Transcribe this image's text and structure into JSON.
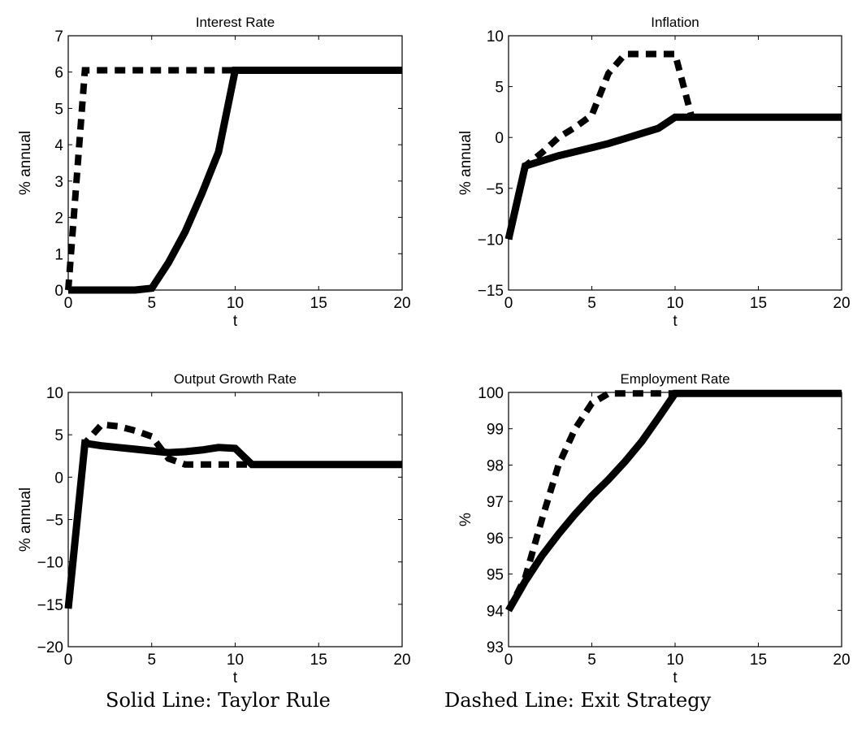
{
  "chart_data": [
    {
      "type": "line",
      "title": "Interest Rate",
      "xlabel": "t",
      "ylabel": "% annual",
      "xlim": [
        0,
        20
      ],
      "ylim": [
        0,
        7
      ],
      "xticks": [
        0,
        5,
        10,
        15,
        20
      ],
      "yticks": [
        0,
        1,
        2,
        3,
        4,
        5,
        6,
        7
      ],
      "series": [
        {
          "style": "solid",
          "x": [
            0,
            1,
            2,
            3,
            4,
            5,
            6,
            7,
            8,
            9,
            10,
            11,
            12,
            13,
            14,
            15,
            16,
            17,
            18,
            19,
            20
          ],
          "y": [
            0,
            0,
            0,
            0,
            0,
            0.05,
            0.75,
            1.6,
            2.65,
            3.8,
            6.05,
            6.05,
            6.05,
            6.05,
            6.05,
            6.05,
            6.05,
            6.05,
            6.05,
            6.05,
            6.05
          ]
        },
        {
          "style": "dashed",
          "x": [
            0,
            1,
            2,
            3,
            4,
            5,
            6,
            7,
            8,
            9,
            10
          ],
          "y": [
            0,
            6.05,
            6.05,
            6.05,
            6.05,
            6.05,
            6.05,
            6.05,
            6.05,
            6.05,
            6.05
          ]
        }
      ]
    },
    {
      "type": "line",
      "title": "Inflation",
      "xlabel": "t",
      "ylabel": "% annual",
      "xlim": [
        0,
        20
      ],
      "ylim": [
        -15,
        10
      ],
      "xticks": [
        0,
        5,
        10,
        15,
        20
      ],
      "yticks": [
        -15,
        -10,
        -5,
        0,
        5,
        10
      ],
      "series": [
        {
          "style": "solid",
          "x": [
            0,
            1,
            2,
            3,
            4,
            5,
            6,
            7,
            8,
            9,
            10,
            11,
            12,
            13,
            14,
            15,
            16,
            17,
            18,
            19,
            20
          ],
          "y": [
            -10,
            -2.8,
            -2.3,
            -1.8,
            -1.4,
            -1.0,
            -0.6,
            -0.1,
            0.4,
            0.9,
            2.0,
            2.0,
            2.0,
            2.0,
            2.0,
            2.0,
            2.0,
            2.0,
            2.0,
            2.0,
            2.0
          ]
        },
        {
          "style": "dashed",
          "x": [
            0,
            1,
            2,
            3,
            4,
            5,
            6,
            7,
            8,
            9,
            10,
            11
          ],
          "y": [
            -10,
            -2.8,
            -1.5,
            0.0,
            1.0,
            2.2,
            6.3,
            8.2,
            8.2,
            8.2,
            8.2,
            2.0
          ]
        }
      ]
    },
    {
      "type": "line",
      "title": "Output Growth Rate",
      "xlabel": "t",
      "ylabel": "% annual",
      "xlim": [
        0,
        20
      ],
      "ylim": [
        -20,
        10
      ],
      "xticks": [
        0,
        5,
        10,
        15,
        20
      ],
      "yticks": [
        -20,
        -15,
        -10,
        -5,
        0,
        5,
        10
      ],
      "series": [
        {
          "style": "solid",
          "x": [
            0,
            1,
            2,
            3,
            4,
            5,
            6,
            7,
            8,
            9,
            10,
            11,
            12,
            13,
            14,
            15,
            16,
            17,
            18,
            19,
            20
          ],
          "y": [
            -15.5,
            4.0,
            3.7,
            3.5,
            3.3,
            3.1,
            2.9,
            3.0,
            3.2,
            3.5,
            3.4,
            1.5,
            1.5,
            1.5,
            1.5,
            1.5,
            1.5,
            1.5,
            1.5,
            1.5,
            1.5
          ]
        },
        {
          "style": "dashed",
          "x": [
            0,
            1,
            2,
            3,
            4,
            5,
            6,
            7,
            8,
            9,
            10,
            11
          ],
          "y": [
            -15.5,
            4.0,
            6.2,
            6.0,
            5.5,
            4.8,
            2.2,
            1.5,
            1.5,
            1.5,
            1.5,
            1.5
          ]
        }
      ]
    },
    {
      "type": "line",
      "title": "Employment Rate",
      "xlabel": "t",
      "ylabel": "%",
      "xlim": [
        0,
        20
      ],
      "ylim": [
        93,
        100
      ],
      "xticks": [
        0,
        5,
        10,
        15,
        20
      ],
      "yticks": [
        93,
        94,
        95,
        96,
        97,
        98,
        99,
        100
      ],
      "series": [
        {
          "style": "solid",
          "x": [
            0,
            1,
            2,
            3,
            4,
            5,
            6,
            7,
            8,
            9,
            10,
            11,
            12,
            13,
            14,
            15,
            16,
            17,
            18,
            19,
            20
          ],
          "y": [
            94.0,
            94.8,
            95.5,
            96.1,
            96.65,
            97.15,
            97.6,
            98.1,
            98.65,
            99.3,
            99.97,
            99.97,
            99.97,
            99.97,
            99.97,
            99.97,
            99.97,
            99.97,
            99.97,
            99.97,
            99.97
          ]
        },
        {
          "style": "dashed",
          "x": [
            0,
            1,
            2,
            3,
            4,
            5,
            6,
            7,
            8,
            9,
            10
          ],
          "y": [
            94.0,
            94.9,
            96.5,
            98.0,
            99.0,
            99.7,
            99.97,
            99.97,
            99.97,
            99.97,
            99.97
          ]
        }
      ]
    }
  ],
  "captions": {
    "solid": "Solid Line: Taylor Rule",
    "dashed": "Dashed Line: Exit Strategy"
  }
}
